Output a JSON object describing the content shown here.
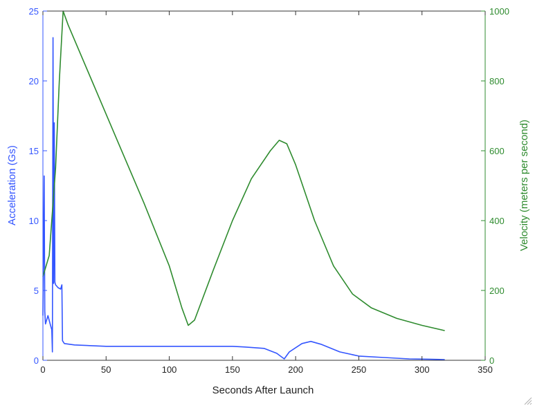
{
  "chart_data": {
    "type": "line",
    "xlabel": "Seconds After Launch",
    "xlim": [
      0,
      350
    ],
    "x_ticks": [
      0,
      50,
      100,
      150,
      200,
      250,
      300,
      350
    ],
    "grid": false,
    "y_left": {
      "label": "Acceleration (Gs)",
      "lim": [
        0,
        25
      ],
      "ticks": [
        0,
        5,
        10,
        15,
        20,
        25
      ],
      "color": "#3355ff"
    },
    "y_right": {
      "label": "Velocity (meters per second)",
      "lim": [
        0,
        1000
      ],
      "ticks": [
        0,
        200,
        400,
        600,
        800,
        1000
      ],
      "color": "#2e8b2e"
    },
    "series": [
      {
        "axis": "left",
        "color": "#3355ff",
        "points": [
          [
            0,
            3.2
          ],
          [
            1,
            13.2
          ],
          [
            1.5,
            3.5
          ],
          [
            2,
            2.6
          ],
          [
            4,
            3.2
          ],
          [
            6,
            2.5
          ],
          [
            7,
            2.2
          ],
          [
            7.5,
            0.6
          ],
          [
            8,
            23.1
          ],
          [
            8.5,
            5.5
          ],
          [
            9,
            17
          ],
          [
            9.5,
            5.6
          ],
          [
            10,
            5.4
          ],
          [
            12,
            5.2
          ],
          [
            14,
            5.1
          ],
          [
            15,
            5.4
          ],
          [
            15.5,
            1.4
          ],
          [
            17,
            1.2
          ],
          [
            25,
            1.1
          ],
          [
            50,
            1.0
          ],
          [
            100,
            1.0
          ],
          [
            150,
            1.0
          ],
          [
            160,
            0.95
          ],
          [
            175,
            0.85
          ],
          [
            185,
            0.5
          ],
          [
            191,
            0.1
          ],
          [
            195,
            0.6
          ],
          [
            205,
            1.2
          ],
          [
            212,
            1.35
          ],
          [
            220,
            1.15
          ],
          [
            235,
            0.6
          ],
          [
            250,
            0.3
          ],
          [
            270,
            0.2
          ],
          [
            290,
            0.1
          ],
          [
            305,
            0.08
          ],
          [
            318,
            0.05
          ]
        ]
      },
      {
        "axis": "right",
        "color": "#2e8b2e",
        "points": [
          [
            0,
            240
          ],
          [
            5,
            300
          ],
          [
            10,
            550
          ],
          [
            13,
            800
          ],
          [
            16,
            1000
          ],
          [
            20,
            960
          ],
          [
            40,
            790
          ],
          [
            60,
            620
          ],
          [
            80,
            450
          ],
          [
            100,
            270
          ],
          [
            110,
            150
          ],
          [
            115,
            100
          ],
          [
            120,
            115
          ],
          [
            135,
            260
          ],
          [
            150,
            400
          ],
          [
            165,
            520
          ],
          [
            180,
            600
          ],
          [
            187,
            630
          ],
          [
            193,
            620
          ],
          [
            200,
            560
          ],
          [
            215,
            400
          ],
          [
            230,
            270
          ],
          [
            245,
            190
          ],
          [
            260,
            150
          ],
          [
            280,
            120
          ],
          [
            300,
            100
          ],
          [
            318,
            85
          ]
        ]
      }
    ]
  },
  "ui": {
    "resize_grip_icon": "resize-grip-icon"
  }
}
